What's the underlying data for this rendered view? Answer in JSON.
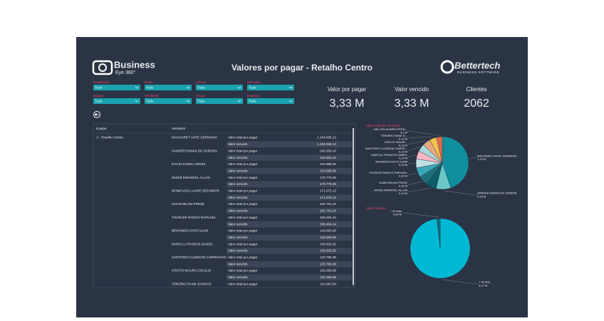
{
  "header": {
    "title": "Valores por pagar - Retalho Centro",
    "left_logo": {
      "name": "Business",
      "sub": "Eye 360°"
    },
    "right_logo": {
      "name": "Bettertech",
      "sub": "BUSINESS SOFTWARE"
    }
  },
  "filters": [
    {
      "label": "Distribuidor",
      "value": "Tudo"
    },
    {
      "label": "Rede",
      "value": "Tudo"
    },
    {
      "label": "Cliente",
      "value": "Tudo"
    },
    {
      "label": "Mercado",
      "value": "Tudo"
    },
    {
      "label": "Equipa",
      "value": "Tudo"
    },
    {
      "label": "Vendedor",
      "value": "Tudo"
    },
    {
      "label": "Grupo",
      "value": "Tudo"
    },
    {
      "label": "Negócio",
      "value": "Tudo"
    }
  ],
  "kpis": [
    {
      "label": "Valor por pagar",
      "value": "3,33 M"
    },
    {
      "label": "Valor vencido",
      "value": "3,33 M"
    },
    {
      "label": "Clientes",
      "value": "2062"
    }
  ],
  "table": {
    "columns": [
      "Equipa",
      "Vendedor"
    ],
    "team": "Retalho Centro",
    "rows": [
      [
        "MACHARET ANTE GERMANO",
        "Valor total por pagar",
        "1.234.836,12"
      ],
      [
        null,
        "Valor vencido",
        "1.234.836,12"
      ],
      [
        "SANDER ENWALDO JOBSON",
        "Valor total por pagar",
        "245.553,10"
      ],
      [
        null,
        "Valor vencido",
        "245.553,10"
      ],
      [
        "DACIO KAREL ADRIEL",
        "Valor total por pagar",
        "219.998,49"
      ],
      [
        null,
        "Valor vencido",
        "219.998,49"
      ],
      [
        "MUNIZ EMANOEL ALLAN",
        "Valor total por pagar",
        "178.775,06"
      ],
      [
        null,
        "Valor vencido",
        "178.775,06"
      ],
      [
        "BONIFACIO LAURE DEFAWERI",
        "Valor total por pagar",
        "171.875,13"
      ],
      [
        null,
        "Valor vencido",
        "171.875,13"
      ],
      [
        "HUAN MILANI FREZE",
        "Valor total por pagar",
        "162.751,43"
      ],
      [
        null,
        "Valor vencido",
        "162.751,43"
      ],
      [
        "THURLER RANCO RAPHAEL",
        "Valor total por pagar",
        "159.494,24"
      ],
      [
        null,
        "Valor vencido",
        "159.494,24"
      ],
      [
        "BENVINDO ENTO ILIAM",
        "Valor total por pagar",
        "146.693,66"
      ],
      [
        null,
        "Valor vencido",
        "146.693,66"
      ],
      [
        "MARCAL FRANCIS DANIEL",
        "Valor total por pagar",
        "139.825,20"
      ],
      [
        null,
        "Valor vencido",
        "139.825,20"
      ],
      [
        "SANTORIO CLEBSON CARPEGIANI",
        "Valor total por pagar",
        "133.786,38"
      ],
      [
        null,
        "Valor vencido",
        "133.786,38"
      ],
      [
        "CRISTO MAURO CECILIO",
        "Valor total por pagar",
        "132.069,68"
      ],
      [
        null,
        "Valor vencido",
        "132.069,68"
      ],
      [
        "TENORIO RANK SANSAO",
        "Valor total por pagar",
        "119.687,63"
      ]
    ]
  },
  "chart_data": [
    {
      "type": "pie",
      "title": "Valor total por vendedor",
      "categories": [
        "MACHARET ANTE GERMANO",
        "SANDER ENWALDO JOBSON",
        "MUNIZ EMANOEL ALLAN",
        "HUAN MILANI FREZE",
        "THURLER RANCO RAPHAEL",
        "BENVINDO ENTO ILIAM",
        "MARCAL FRANCIS DANIEL",
        "SANTORIO CLEBSON CARPE...",
        "CRISTO MAURI...",
        "TENORIO RANK S...",
        "NELLER ALMIRO FERN..."
      ],
      "values": [
        1.23,
        0.25,
        0.18,
        0.16,
        0.16,
        0.15,
        0.14,
        0.13,
        0.13,
        0.12,
        0.1
      ],
      "value_labels": [
        "1,23 M",
        "0,25 M",
        "0,18 M",
        "0,16 M",
        "0,16 M",
        "0,15 M",
        "0,14 M",
        "0,13 M",
        "0,13 M",
        "0,12 M",
        "0,1 M"
      ],
      "colors": [
        "#0f8e9e",
        "#6cc7c9",
        "#0d5d6a",
        "#1f6f7a",
        "#3aa7b6",
        "#bfe0e2",
        "#f4b6c2",
        "#a7d8d9",
        "#e8a87c",
        "#f2c14e",
        "#e06a4a"
      ]
    },
    {
      "type": "pie",
      "title": "Valor vencido",
      "categories": [
        "+ 90 dias",
        "+ 90 dias"
      ],
      "values": [
        3.27,
        0.06
      ],
      "value_labels": [
        "3,27 M",
        "0,06 M"
      ],
      "colors": [
        "#00b8d4",
        "#0b6e7e"
      ]
    }
  ]
}
